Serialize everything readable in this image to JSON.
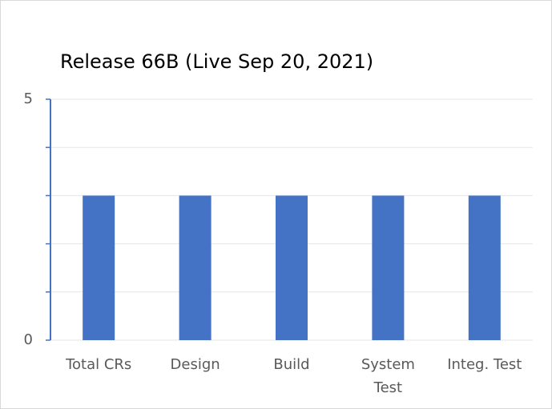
{
  "chart_data": {
    "type": "bar",
    "title": "Release 66B (Live Sep 20, 2021)",
    "categories": [
      "Total CRs",
      "Design",
      "Build",
      "System Test",
      "Integ. Test"
    ],
    "values": [
      3,
      3,
      3,
      3,
      3
    ],
    "color": "#4472c4",
    "ylim": [
      0,
      5
    ],
    "yticks": [
      0,
      5
    ],
    "minor_yticks": [
      1,
      2,
      3,
      4
    ],
    "grid": true
  }
}
